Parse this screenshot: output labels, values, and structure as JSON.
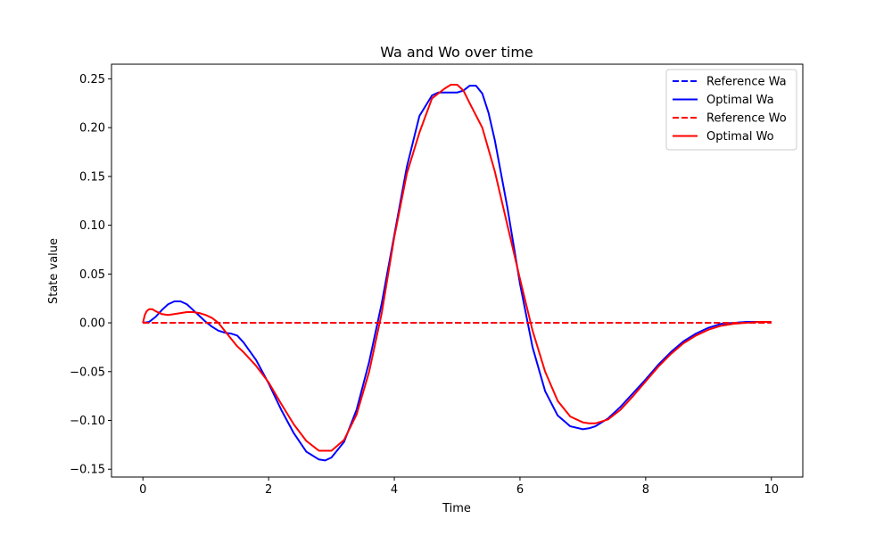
{
  "chart_data": {
    "type": "line",
    "title": "Wa and Wo over time",
    "xlabel": "Time",
    "ylabel": "State value",
    "xlim": [
      -0.5,
      10.5
    ],
    "ylim": [
      -0.158,
      0.265
    ],
    "x_ticks": [
      0,
      2,
      4,
      6,
      8,
      10
    ],
    "x_tick_labels": [
      "0",
      "2",
      "4",
      "6",
      "8",
      "10"
    ],
    "y_ticks": [
      -0.15,
      -0.1,
      -0.05,
      0.0,
      0.05,
      0.1,
      0.15,
      0.2,
      0.25
    ],
    "y_tick_labels": [
      "−0.15",
      "−0.10",
      "−0.05",
      "0.00",
      "0.05",
      "0.10",
      "0.15",
      "0.20",
      "0.25"
    ],
    "grid": false,
    "legend_position": "top-right",
    "series": [
      {
        "name": "Reference Wa",
        "color": "#0000ff",
        "dash": "dashed",
        "x": [
          0,
          10
        ],
        "y": [
          0.0,
          0.0
        ]
      },
      {
        "name": "Optimal Wa",
        "color": "#0000ff",
        "dash": "solid",
        "x": [
          0,
          0.1,
          0.2,
          0.3,
          0.4,
          0.5,
          0.6,
          0.7,
          0.8,
          0.9,
          1.0,
          1.1,
          1.2,
          1.3,
          1.4,
          1.5,
          1.6,
          1.8,
          2.0,
          2.2,
          2.4,
          2.6,
          2.8,
          2.9,
          3.0,
          3.2,
          3.4,
          3.6,
          3.8,
          4.0,
          4.2,
          4.4,
          4.6,
          4.7,
          4.8,
          4.9,
          5.0,
          5.1,
          5.2,
          5.3,
          5.4,
          5.5,
          5.6,
          5.8,
          6.0,
          6.2,
          6.4,
          6.6,
          6.8,
          7.0,
          7.1,
          7.2,
          7.4,
          7.6,
          7.8,
          8.0,
          8.2,
          8.4,
          8.6,
          8.8,
          9.0,
          9.2,
          9.4,
          9.6,
          9.8,
          10.0
        ],
        "y": [
          0.0,
          0.001,
          0.006,
          0.013,
          0.019,
          0.022,
          0.022,
          0.019,
          0.013,
          0.007,
          0.001,
          -0.004,
          -0.008,
          -0.01,
          -0.011,
          -0.013,
          -0.02,
          -0.038,
          -0.062,
          -0.089,
          -0.113,
          -0.132,
          -0.14,
          -0.141,
          -0.138,
          -0.122,
          -0.089,
          -0.04,
          0.02,
          0.09,
          0.16,
          0.212,
          0.233,
          0.236,
          0.236,
          0.236,
          0.236,
          0.238,
          0.243,
          0.243,
          0.235,
          0.215,
          0.187,
          0.118,
          0.04,
          -0.025,
          -0.07,
          -0.095,
          -0.106,
          -0.109,
          -0.108,
          -0.106,
          -0.098,
          -0.086,
          -0.072,
          -0.058,
          -0.043,
          -0.03,
          -0.019,
          -0.011,
          -0.005,
          -0.001,
          0.0,
          0.001,
          0.001,
          0.001
        ]
      },
      {
        "name": "Reference Wo",
        "color": "#ff0000",
        "dash": "dashed",
        "x": [
          0,
          10
        ],
        "y": [
          0.0,
          0.0
        ]
      },
      {
        "name": "Optimal Wo",
        "color": "#ff0000",
        "dash": "solid",
        "x": [
          0,
          0.03,
          0.06,
          0.1,
          0.15,
          0.2,
          0.3,
          0.4,
          0.5,
          0.6,
          0.7,
          0.8,
          0.9,
          1.0,
          1.1,
          1.2,
          1.3,
          1.4,
          1.5,
          1.6,
          1.8,
          2.0,
          2.2,
          2.4,
          2.6,
          2.8,
          3.0,
          3.2,
          3.4,
          3.6,
          3.8,
          4.0,
          4.2,
          4.4,
          4.6,
          4.8,
          4.9,
          5.0,
          5.1,
          5.2,
          5.4,
          5.6,
          5.8,
          6.0,
          6.2,
          6.4,
          6.6,
          6.8,
          7.0,
          7.1,
          7.2,
          7.4,
          7.6,
          7.8,
          8.0,
          8.2,
          8.4,
          8.6,
          8.8,
          9.0,
          9.2,
          9.4,
          9.6,
          9.8,
          10.0
        ],
        "y": [
          0.0,
          0.008,
          0.012,
          0.014,
          0.014,
          0.012,
          0.009,
          0.008,
          0.009,
          0.01,
          0.011,
          0.011,
          0.01,
          0.008,
          0.005,
          0.0,
          -0.008,
          -0.016,
          -0.024,
          -0.03,
          -0.044,
          -0.061,
          -0.083,
          -0.104,
          -0.121,
          -0.131,
          -0.131,
          -0.12,
          -0.094,
          -0.05,
          0.01,
          0.088,
          0.153,
          0.195,
          0.23,
          0.24,
          0.244,
          0.244,
          0.238,
          0.225,
          0.2,
          0.155,
          0.1,
          0.045,
          -0.008,
          -0.05,
          -0.08,
          -0.096,
          -0.102,
          -0.103,
          -0.103,
          -0.099,
          -0.089,
          -0.075,
          -0.06,
          -0.045,
          -0.032,
          -0.021,
          -0.013,
          -0.007,
          -0.003,
          -0.001,
          0.0,
          0.001,
          0.001
        ]
      }
    ]
  }
}
